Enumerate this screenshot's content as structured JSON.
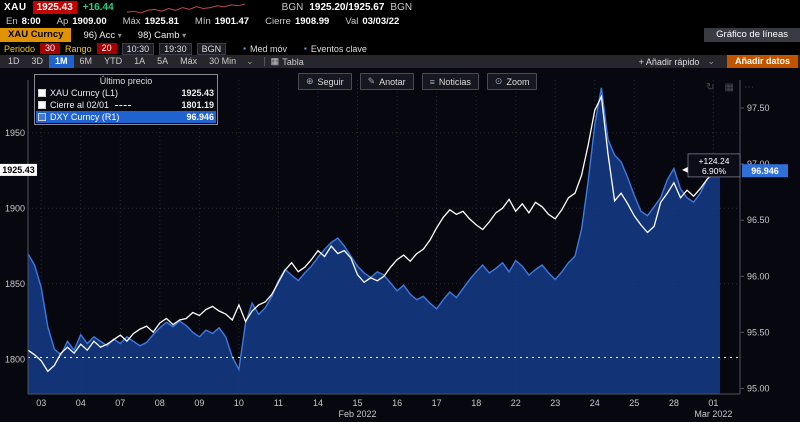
{
  "colors": {
    "accent_orange": "#e09200",
    "active_blue": "#1f62d0",
    "price_flash_red": "#c40000",
    "change_green": "#21d07a"
  },
  "header": {
    "ticker": "XAU",
    "price": "1925.43",
    "change": "+16.44",
    "quote_source_left": "BGN",
    "quote": "1925.20/1925.67",
    "quote_source_right": "BGN",
    "sparkline": [
      3,
      4,
      2,
      5,
      6,
      4,
      7,
      5,
      8,
      6,
      9,
      7,
      8,
      10,
      9,
      11,
      10,
      12
    ],
    "stats": [
      {
        "label": "En",
        "value": "8:00"
      },
      {
        "label": "Ap",
        "value": "1909.00"
      },
      {
        "label": "Máx",
        "value": "1925.81"
      },
      {
        "label": "Mín",
        "value": "1901.47"
      },
      {
        "label": "Cierre",
        "value": "1908.99"
      },
      {
        "label": "Val",
        "value": "03/03/22"
      }
    ]
  },
  "security_bar": {
    "security": "XAU Curncy",
    "caret_glyph": "▾",
    "actions": [
      {
        "label": "96) Acc"
      },
      {
        "label": "98) Camb"
      }
    ],
    "screen_title": "Gráfico de líneas"
  },
  "toolbar": {
    "period_label": "Periodo",
    "period_value": "30",
    "range_label": "Rango",
    "range_value": "20",
    "time_from": "10:30",
    "time_to": "19:30",
    "source": "BGN",
    "moving_avg_label": "Med móv",
    "key_events_label": "Eventos clave",
    "bullet_glyph": "▪"
  },
  "tab_bar": {
    "tabs": [
      "1D",
      "3D",
      "1M",
      "6M",
      "YTD",
      "1A",
      "5A",
      "Máx",
      "30 Min"
    ],
    "selected": "1M",
    "caret": "⌄",
    "table_icon": "▦",
    "table_label": "Tabla",
    "add_quick_label": "+ Añadir rápido",
    "add_data_label": "Añadir datos"
  },
  "chart_buttons": [
    {
      "icon": "follow-icon",
      "glyph": "⊕",
      "label": "Seguir"
    },
    {
      "icon": "annotate-icon",
      "glyph": "✎",
      "label": "Anotar"
    },
    {
      "icon": "news-icon",
      "glyph": "≡",
      "label": "Noticias"
    },
    {
      "icon": "zoom-icon",
      "glyph": "⊙",
      "label": "Zoom"
    }
  ],
  "chart_corner_icons": [
    {
      "name": "refresh-icon",
      "glyph": "↻"
    },
    {
      "name": "grid-icon",
      "glyph": "▦"
    },
    {
      "name": "more-icon",
      "glyph": "⋯"
    }
  ],
  "legend": {
    "title": "Último precio",
    "items": [
      {
        "name": "XAU Curncy (L1)",
        "value": "1925.43",
        "swatch": "solid-white",
        "selected": false
      },
      {
        "name": "Cierre al 02/01",
        "value": "1801.19",
        "swatch": "dashed-white",
        "selected": false
      },
      {
        "name": "DXY Curncy (R1)",
        "value": "96.946",
        "swatch": "solid-blue",
        "selected": true
      }
    ]
  },
  "chart_data": {
    "type": "line",
    "title": "XAU Curncy vs DXY Curncy — Gráfico de líneas",
    "points_per_day": 6,
    "x_tick_labels": [
      "03",
      "04",
      "07",
      "08",
      "09",
      "10",
      "11",
      "14",
      "15",
      "16",
      "17",
      "18",
      "22",
      "23",
      "24",
      "25",
      "28",
      "01"
    ],
    "x_group_labels": [
      {
        "label": "Feb 2022"
      },
      {
        "label": "Mar 2022"
      }
    ],
    "left_axis": {
      "ticks": [
        1800,
        1850,
        1900,
        1950
      ],
      "range": [
        1777,
        1985
      ],
      "last": "1925.43"
    },
    "right_axis": {
      "ticks": [
        95.0,
        95.5,
        96.0,
        96.5,
        97.0,
        97.5
      ],
      "range": [
        94.95,
        97.75
      ],
      "last": "96.946"
    },
    "reference_line": {
      "label": "Cierre al 02/01",
      "value": 1801.19
    },
    "annotation": {
      "change": "+124.24",
      "change_pct": "6.90%"
    },
    "series": [
      {
        "name": "XAU Curncy (L1)",
        "axis": "left",
        "color": "#ffffff",
        "values": [
          1806,
          1803,
          1799,
          1792,
          1796,
          1804,
          1808,
          1804,
          1810,
          1806,
          1812,
          1808,
          1810,
          1813,
          1816,
          1812,
          1817,
          1820,
          1822,
          1818,
          1824,
          1827,
          1823,
          1826,
          1827,
          1831,
          1829,
          1833,
          1835,
          1832,
          1830,
          1826,
          1836,
          1825,
          1832,
          1836,
          1838,
          1843,
          1851,
          1859,
          1864,
          1858,
          1861,
          1866,
          1872,
          1868,
          1875,
          1870,
          1872,
          1867,
          1856,
          1851,
          1854,
          1852,
          1855,
          1861,
          1866,
          1869,
          1865,
          1870,
          1873,
          1879,
          1887,
          1894,
          1899,
          1896,
          1898,
          1893,
          1889,
          1886,
          1891,
          1897,
          1900,
          1906,
          1898,
          1903,
          1897,
          1904,
          1901,
          1896,
          1893,
          1899,
          1907,
          1910,
          1922,
          1942,
          1965,
          1974,
          1936,
          1905,
          1910,
          1903,
          1895,
          1889,
          1884,
          1888,
          1904,
          1910,
          1917,
          1907,
          1912,
          1908,
          1913,
          1919,
          1924,
          1925.43
        ]
      },
      {
        "name": "DXY Curncy (R1)",
        "axis": "right",
        "color": "#4079e0",
        "fill": "#153a85",
        "values": [
          96.2,
          96.1,
          95.9,
          95.55,
          95.35,
          95.3,
          95.42,
          95.34,
          95.48,
          95.4,
          95.46,
          95.42,
          95.38,
          95.44,
          95.4,
          95.46,
          95.42,
          95.38,
          95.41,
          95.48,
          95.54,
          95.59,
          95.55,
          95.6,
          95.56,
          95.5,
          95.46,
          95.52,
          95.49,
          95.54,
          95.46,
          95.28,
          95.17,
          95.58,
          95.76,
          95.66,
          95.72,
          95.82,
          95.96,
          96.06,
          96.01,
          95.96,
          96.03,
          96.09,
          96.17,
          96.24,
          96.3,
          96.34,
          96.27,
          96.18,
          96.09,
          96.03,
          95.99,
          96.04,
          96.01,
          95.94,
          95.87,
          95.92,
          95.84,
          95.79,
          95.82,
          95.76,
          95.71,
          95.79,
          95.86,
          95.81,
          95.89,
          95.97,
          96.04,
          96.1,
          96.03,
          96.07,
          96.12,
          96.04,
          96.14,
          96.09,
          96.01,
          96.06,
          96.1,
          96.03,
          95.97,
          96.04,
          96.12,
          96.18,
          96.42,
          96.85,
          97.35,
          97.68,
          97.22,
          97.08,
          97.02,
          96.88,
          96.72,
          96.58,
          96.54,
          96.62,
          96.7,
          96.86,
          96.96,
          96.78,
          96.7,
          96.66,
          96.74,
          96.86,
          96.92,
          96.946
        ]
      }
    ]
  }
}
